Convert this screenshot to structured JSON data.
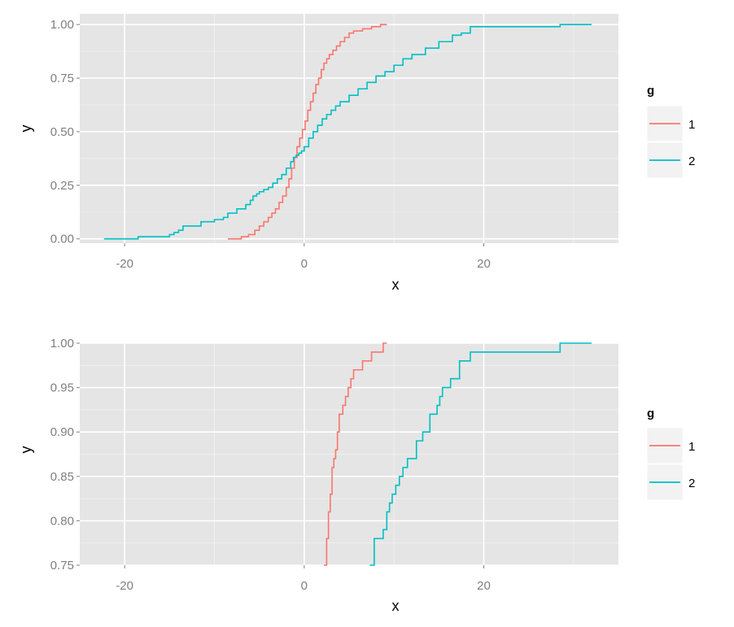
{
  "colors": {
    "panel_bg": "#E5E5E5",
    "grid_major": "#FFFFFF",
    "grid_minor": "#F2F2F2",
    "legend_key_bg": "#F2F2F2",
    "series_1": "#F8766D",
    "series_2": "#00BFC4",
    "tick_text": "#7F7F7F"
  },
  "chart_data": [
    {
      "type": "line",
      "step": true,
      "xlabel": "x",
      "ylabel": "y",
      "xlim": [
        -25,
        35
      ],
      "ylim": [
        -0.02,
        1.05
      ],
      "x_ticks": [
        -20,
        0,
        20
      ],
      "x_tick_labels": [
        "-20",
        "0",
        "20"
      ],
      "y_ticks": [
        0,
        0.25,
        0.5,
        0.75,
        1
      ],
      "y_tick_labels": [
        "0.00",
        "0.25",
        "0.50",
        "0.75",
        "1.00"
      ],
      "grid": true,
      "legend": {
        "title": "g",
        "placement": "right",
        "entries": [
          "1",
          "2"
        ]
      },
      "series": [
        {
          "name": "1",
          "color_key": "series_1",
          "x": [
            -8.5,
            -7.0,
            -6.2,
            -5.5,
            -5.0,
            -4.5,
            -4.0,
            -3.6,
            -3.2,
            -2.8,
            -2.4,
            -2.0,
            -1.7,
            -1.4,
            -1.1,
            -0.8,
            -0.5,
            -0.2,
            0.1,
            0.4,
            0.7,
            1.0,
            1.3,
            1.6,
            1.9,
            2.2,
            2.5,
            2.8,
            3.2,
            3.6,
            4.0,
            4.5,
            5.0,
            5.5,
            6.5,
            7.5,
            8.5,
            9.2
          ],
          "y": [
            0.0,
            0.01,
            0.02,
            0.04,
            0.06,
            0.08,
            0.1,
            0.12,
            0.14,
            0.17,
            0.2,
            0.24,
            0.28,
            0.33,
            0.38,
            0.43,
            0.47,
            0.51,
            0.55,
            0.6,
            0.64,
            0.68,
            0.72,
            0.75,
            0.79,
            0.82,
            0.84,
            0.86,
            0.88,
            0.9,
            0.92,
            0.94,
            0.96,
            0.97,
            0.98,
            0.99,
            1.0,
            1.0
          ]
        },
        {
          "name": "2",
          "color_key": "series_2",
          "x": [
            -22.3,
            -18.5,
            -15.0,
            -14.5,
            -14.0,
            -13.5,
            -11.5,
            -10.0,
            -9.0,
            -8.5,
            -7.5,
            -6.5,
            -6.0,
            -5.7,
            -5.3,
            -5.0,
            -4.5,
            -4.0,
            -3.5,
            -3.0,
            -2.5,
            -2.0,
            -1.5,
            -1.2,
            -0.9,
            -0.6,
            -0.3,
            0.0,
            0.5,
            1.0,
            1.5,
            2.0,
            2.5,
            3.0,
            3.5,
            4.0,
            5.0,
            6.0,
            7.0,
            8.0,
            9.0,
            10.0,
            11.0,
            12.0,
            13.5,
            15.0,
            16.5,
            17.5,
            18.5,
            28.5,
            32.0
          ],
          "y": [
            0.0,
            0.01,
            0.02,
            0.03,
            0.04,
            0.06,
            0.08,
            0.09,
            0.1,
            0.12,
            0.14,
            0.16,
            0.18,
            0.2,
            0.21,
            0.22,
            0.23,
            0.24,
            0.26,
            0.28,
            0.3,
            0.33,
            0.36,
            0.38,
            0.39,
            0.4,
            0.41,
            0.43,
            0.47,
            0.5,
            0.53,
            0.56,
            0.58,
            0.6,
            0.62,
            0.64,
            0.67,
            0.7,
            0.73,
            0.76,
            0.78,
            0.81,
            0.84,
            0.86,
            0.89,
            0.92,
            0.95,
            0.96,
            0.99,
            1.0,
            1.0
          ]
        }
      ]
    },
    {
      "type": "line",
      "step": true,
      "xlabel": "x",
      "ylabel": "y",
      "xlim": [
        -25,
        35
      ],
      "ylim": [
        0.75,
        1.0
      ],
      "x_ticks": [
        -20,
        0,
        20
      ],
      "x_tick_labels": [
        "-20",
        "0",
        "20"
      ],
      "y_ticks": [
        0.75,
        0.8,
        0.85,
        0.9,
        0.95,
        1
      ],
      "y_tick_labels": [
        "0.75",
        "0.80",
        "0.85",
        "0.90",
        "0.95",
        "1.00"
      ],
      "grid": true,
      "legend": {
        "title": "g",
        "placement": "right",
        "entries": [
          "1",
          "2"
        ]
      },
      "series": [
        {
          "name": "1",
          "color_key": "series_1",
          "x": [
            2.2,
            2.5,
            2.7,
            2.9,
            3.1,
            3.3,
            3.5,
            3.7,
            3.9,
            4.1,
            4.3,
            4.6,
            4.9,
            5.2,
            5.5,
            6.5,
            7.5,
            8.0,
            8.8,
            9.2
          ],
          "y": [
            0.75,
            0.78,
            0.81,
            0.83,
            0.86,
            0.87,
            0.88,
            0.9,
            0.92,
            0.92,
            0.93,
            0.94,
            0.95,
            0.96,
            0.97,
            0.98,
            0.99,
            0.99,
            1.0,
            1.0
          ]
        },
        {
          "name": "2",
          "color_key": "series_2",
          "x": [
            7.3,
            7.8,
            8.8,
            9.2,
            9.5,
            9.8,
            10.2,
            10.6,
            11.0,
            11.5,
            12.5,
            13.2,
            14.0,
            14.8,
            15.1,
            15.4,
            16.3,
            17.3,
            18.5,
            28.5,
            32.0
          ],
          "y": [
            0.75,
            0.78,
            0.79,
            0.81,
            0.82,
            0.83,
            0.84,
            0.85,
            0.86,
            0.87,
            0.89,
            0.9,
            0.92,
            0.93,
            0.94,
            0.95,
            0.96,
            0.98,
            0.99,
            1.0,
            1.0
          ]
        }
      ]
    }
  ]
}
